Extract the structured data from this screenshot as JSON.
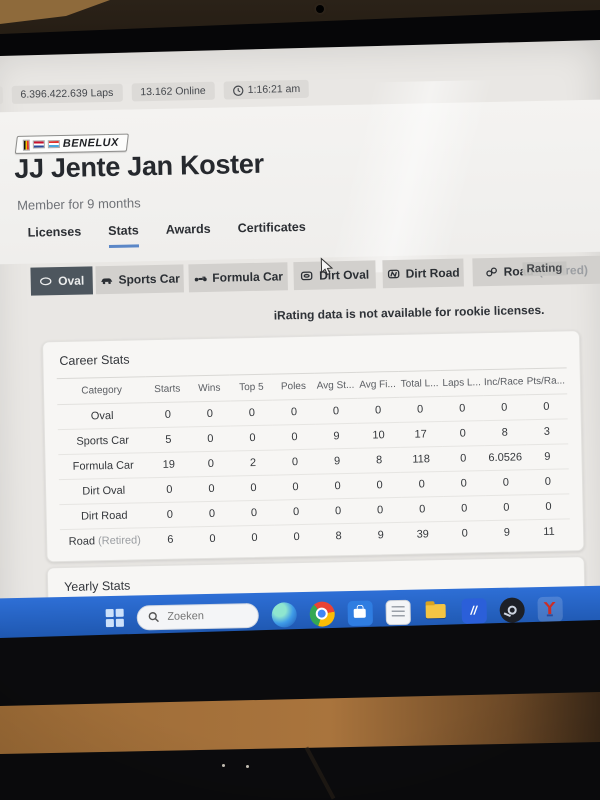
{
  "colors": {
    "accent_blue": "#5b87c7",
    "taskbar_blue": "#2563c4",
    "selected_filter": "#4d565e",
    "screen_bg": "#e9e7e4"
  },
  "status_bar": {
    "chip_partial": "13",
    "laps": "6.396.422.639 Laps",
    "online": "13.162 Online",
    "time": "1:16:21 am"
  },
  "profile": {
    "club_badge": "BENELUX",
    "name": "JJ Jente Jan Koster",
    "membership": "Member for 9 months"
  },
  "tabs": [
    {
      "label": "Licenses",
      "active": false
    },
    {
      "label": "Stats",
      "active": true
    },
    {
      "label": "Awards",
      "active": false
    },
    {
      "label": "Certificates",
      "active": false
    }
  ],
  "category_filters": [
    {
      "label": "Oval",
      "icon": "oval-icon",
      "selected": true
    },
    {
      "label": "Sports Car",
      "icon": "sports-car-icon",
      "selected": false
    },
    {
      "label": "Formula Car",
      "icon": "formula-car-icon",
      "selected": false
    },
    {
      "label": "Dirt Oval",
      "icon": "dirt-oval-icon",
      "selected": false
    },
    {
      "label": "Dirt Road",
      "icon": "dirt-road-icon",
      "selected": false
    },
    {
      "label": "Road",
      "suffix": " (Retired)",
      "icon": "road-icon",
      "selected": false,
      "overlay_label": "Rating"
    }
  ],
  "notice": "iRating data is not available for rookie licenses.",
  "career_stats": {
    "title": "Career Stats",
    "columns": [
      "Category",
      "Starts",
      "Wins",
      "Top 5",
      "Poles",
      "Avg St...",
      "Avg Fi...",
      "Total L...",
      "Laps L...",
      "Inc/Race",
      "Pts/Ra..."
    ],
    "rows": [
      {
        "category": "Oval",
        "values": [
          "0",
          "0",
          "0",
          "0",
          "0",
          "0",
          "0",
          "0",
          "0",
          "0"
        ]
      },
      {
        "category": "Sports Car",
        "values": [
          "5",
          "0",
          "0",
          "0",
          "9",
          "10",
          "17",
          "0",
          "8",
          "3"
        ]
      },
      {
        "category": "Formula Car",
        "values": [
          "19",
          "0",
          "2",
          "0",
          "9",
          "8",
          "118",
          "0",
          "6.0526",
          "9"
        ]
      },
      {
        "category": "Dirt Oval",
        "values": [
          "0",
          "0",
          "0",
          "0",
          "0",
          "0",
          "0",
          "0",
          "0",
          "0"
        ]
      },
      {
        "category": "Dirt Road",
        "values": [
          "0",
          "0",
          "0",
          "0",
          "0",
          "0",
          "0",
          "0",
          "0",
          "0"
        ]
      },
      {
        "category": "Road",
        "category_suffix": "(Retired)",
        "values": [
          "6",
          "0",
          "0",
          "0",
          "8",
          "9",
          "39",
          "0",
          "9",
          "11"
        ]
      }
    ]
  },
  "yearly_stats": {
    "title": "Yearly Stats"
  },
  "taskbar": {
    "search_placeholder": "Zoeken",
    "code_glyph": "//",
    "icons": [
      "start-icon",
      "search-icon",
      "edge-icon",
      "chrome-icon",
      "store-icon",
      "notepad-icon",
      "explorer-icon",
      "code-icon",
      "steam-icon",
      "victory-icon"
    ]
  }
}
